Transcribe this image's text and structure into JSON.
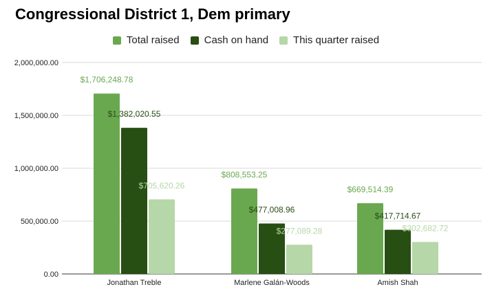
{
  "chart_data": {
    "type": "bar",
    "title": "Congressional District 1, Dem primary",
    "categories": [
      "Jonathan Treble",
      "Marlene Galán-Woods",
      "Amish Shah"
    ],
    "series": [
      {
        "name": "Total raised",
        "color": "#6aa84f",
        "values": [
          1706248.78,
          808553.25,
          669514.39
        ],
        "labels": [
          "$1,706,248.78",
          "$808,553.25",
          "$669,514.39"
        ]
      },
      {
        "name": "Cash on hand",
        "color": "#274e13",
        "values": [
          1382020.55,
          477008.96,
          417714.67
        ],
        "labels": [
          "$1,382,020.55",
          "$477,008.96",
          "$417,714.67"
        ]
      },
      {
        "name": "This quarter raised",
        "color": "#b6d7a8",
        "values": [
          705620.26,
          277089.28,
          302682.72
        ],
        "labels": [
          "$705,620.26",
          "$277,089.28",
          "$302,682.72"
        ]
      }
    ],
    "yticks": [
      0,
      500000,
      1000000,
      1500000,
      2000000
    ],
    "ytick_labels": [
      "0.00",
      "500,000.00",
      "1,000,000.00",
      "1,500,000.00",
      "2,000,000.00"
    ],
    "ylim": [
      0,
      2000000
    ],
    "xlabel": "",
    "ylabel": "",
    "legend_position": "top",
    "grid": true
  }
}
